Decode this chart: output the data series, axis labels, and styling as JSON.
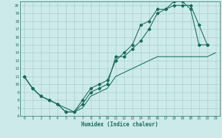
{
  "title": "",
  "xlabel": "Humidex (Indice chaleur)",
  "background_color": "#cceaea",
  "grid_color": "#aacccc",
  "line_color": "#1a6b5a",
  "xlim": [
    -0.5,
    23.5
  ],
  "ylim": [
    6,
    20.5
  ],
  "xticks": [
    0,
    1,
    2,
    3,
    4,
    5,
    6,
    7,
    8,
    9,
    10,
    11,
    12,
    13,
    14,
    15,
    16,
    17,
    18,
    19,
    20,
    21,
    22,
    23
  ],
  "yticks": [
    6,
    7,
    8,
    9,
    10,
    11,
    12,
    13,
    14,
    15,
    16,
    17,
    18,
    19,
    20
  ],
  "line1_x": [
    0,
    1,
    2,
    3,
    4,
    5,
    6,
    7,
    8,
    9,
    10,
    11,
    12,
    13,
    14,
    15,
    16,
    17,
    18,
    19,
    20,
    21,
    22
  ],
  "line1_y": [
    11,
    9.5,
    8.5,
    8.0,
    7.5,
    6.5,
    6.5,
    8.0,
    9.5,
    10.0,
    10.5,
    13.0,
    14.0,
    15.0,
    17.5,
    18.0,
    19.5,
    19.5,
    20.0,
    20.0,
    20.0,
    17.5,
    15.0
  ],
  "line2_x": [
    0,
    1,
    2,
    3,
    4,
    5,
    6,
    7,
    8,
    9,
    10,
    11,
    12,
    13,
    14,
    15,
    16,
    17,
    18,
    19,
    20,
    21,
    22
  ],
  "line2_y": [
    11,
    9.5,
    8.5,
    8.0,
    7.5,
    6.5,
    6.5,
    7.5,
    9.0,
    9.5,
    10.0,
    13.5,
    13.5,
    14.5,
    15.5,
    17.0,
    19.0,
    19.5,
    20.5,
    20.5,
    19.5,
    15.0,
    15.0
  ],
  "line3_x": [
    0,
    1,
    2,
    3,
    4,
    5,
    6,
    7,
    8,
    9,
    10,
    11,
    12,
    13,
    14,
    15,
    16,
    17,
    18,
    19,
    20,
    21,
    22,
    23
  ],
  "line3_y": [
    11,
    9.5,
    8.5,
    8.0,
    7.5,
    7.0,
    6.5,
    7.0,
    8.5,
    9.0,
    9.5,
    11.0,
    11.5,
    12.0,
    12.5,
    13.0,
    13.5,
    13.5,
    13.5,
    13.5,
    13.5,
    13.5,
    13.5,
    14.0
  ]
}
